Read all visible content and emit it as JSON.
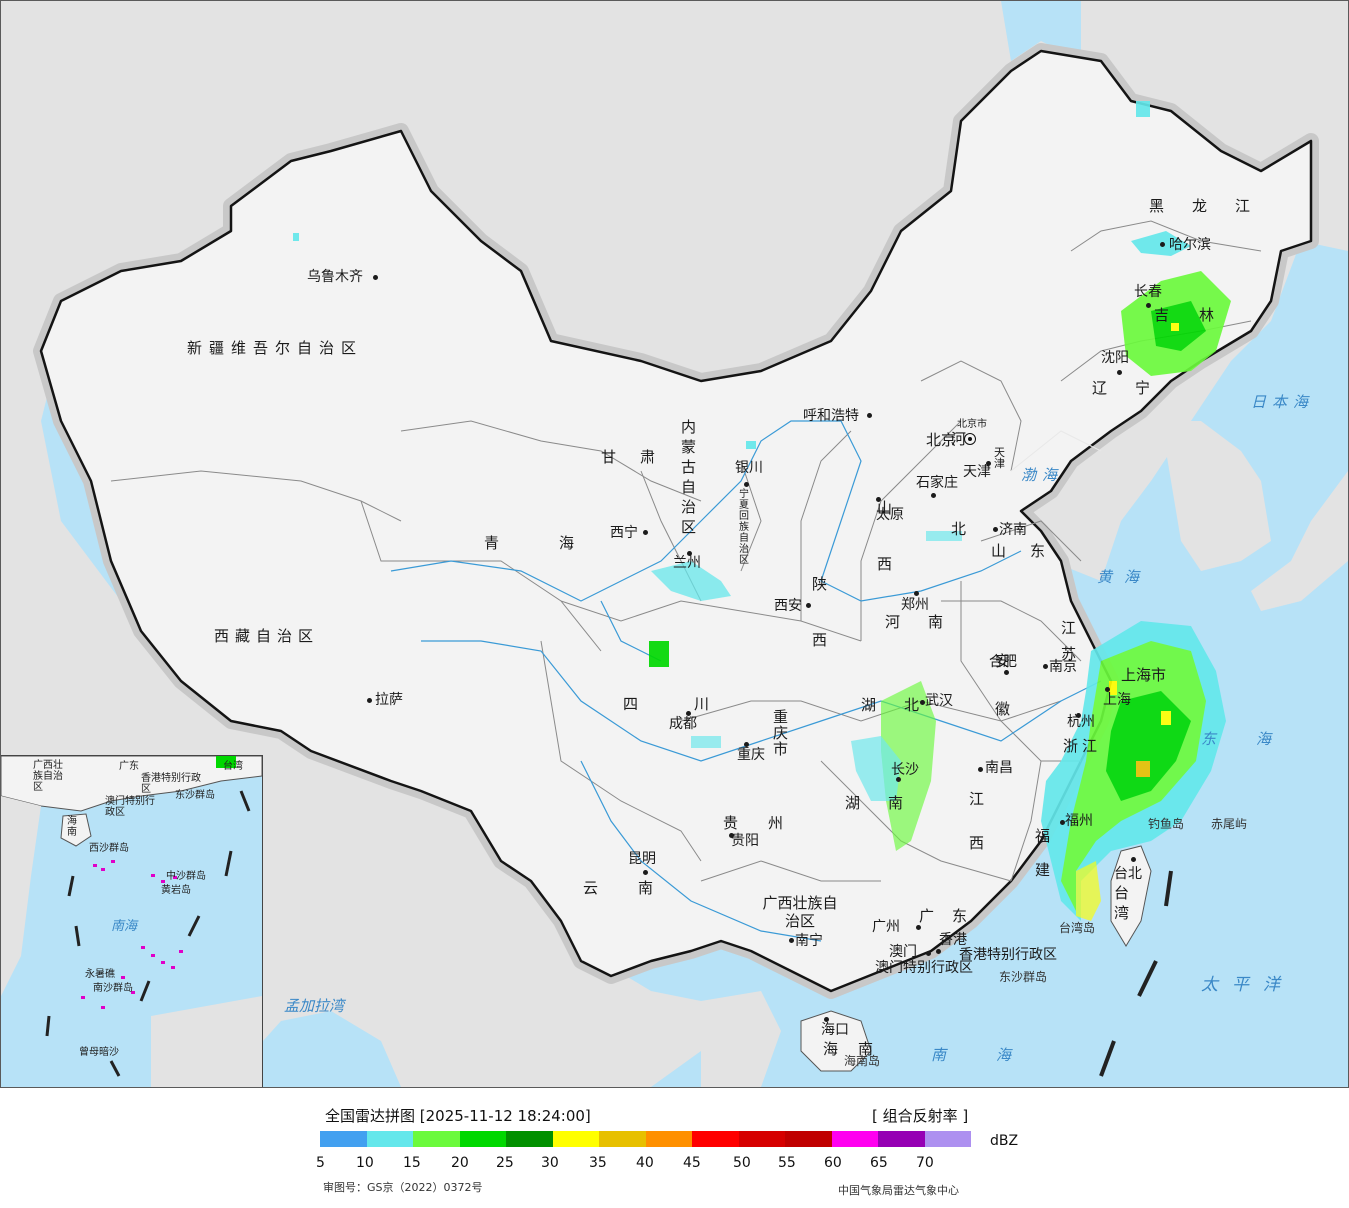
{
  "colors": {
    "ocean": "#b7e2f7",
    "land_foreign": "#e3e3e3",
    "land_china": "#f3f3f3",
    "border": "#141414",
    "river": "#3a9ad6"
  },
  "map": {
    "provinces": [
      "黑龙江",
      "吉林",
      "辽宁",
      "内蒙古自治区",
      "河北",
      "山西",
      "山东",
      "河南",
      "江苏",
      "安徽",
      "浙江",
      "江西",
      "福建",
      "湖北",
      "湖南",
      "广东",
      "广西壮族自治区",
      "海南",
      "四川",
      "重庆市",
      "贵州",
      "云南",
      "西藏自治区",
      "陕西",
      "甘肃",
      "青海",
      "宁夏回族自治区",
      "新疆维吾尔自治区",
      "台湾",
      "上海市",
      "北京市",
      "天津",
      "香港特别行政区",
      "澳门特别行政区"
    ],
    "cities": [
      "乌鲁木齐",
      "哈尔滨",
      "长春",
      "沈阳",
      "呼和浩特",
      "北京",
      "天津",
      "石家庄",
      "太原",
      "济南",
      "银川",
      "西宁",
      "兰州",
      "西安",
      "郑州",
      "合肥",
      "南京",
      "上海",
      "杭州",
      "武汉",
      "南昌",
      "长沙",
      "福州",
      "台北",
      "成都",
      "重庆",
      "贵阳",
      "昆明",
      "南宁",
      "广州",
      "澳门",
      "香港",
      "海口",
      "拉萨"
    ],
    "seas": [
      "日本海",
      "渤海",
      "黄海",
      "东海",
      "南海",
      "太平洋",
      "孟加拉湾"
    ],
    "islands": [
      "钓鱼岛",
      "赤尾屿",
      "东沙群岛",
      "海南岛",
      "台湾岛"
    ],
    "inset": {
      "labels": [
        "广西壮族自治区",
        "广东",
        "台湾",
        "香港特别行政区",
        "澳门特别行政区",
        "海南",
        "东沙群岛",
        "西沙群岛",
        "中沙群岛",
        "黄岩岛",
        "南海",
        "永暑礁",
        "南沙群岛",
        "曾母暗沙"
      ]
    }
  },
  "legend": {
    "title": "全国雷达拼图 [2025-11-12 18:24:00]",
    "product": "[ 组合反射率 ]",
    "unit": "dBZ",
    "ticks": [
      "5",
      "10",
      "15",
      "20",
      "25",
      "30",
      "35",
      "40",
      "45",
      "50",
      "55",
      "60",
      "65",
      "70"
    ],
    "colors": [
      "#42a0f0",
      "#64e7eb",
      "#6bfa3c",
      "#00d800",
      "#019000",
      "#ffff00",
      "#e7c000",
      "#ff9000",
      "#ff0000",
      "#d60000",
      "#c00000",
      "#ff00f0",
      "#9600b4",
      "#ad90f0"
    ],
    "approval": "审图号：GS京（2022）0372号",
    "source": "中国气象局雷达气象中心"
  }
}
